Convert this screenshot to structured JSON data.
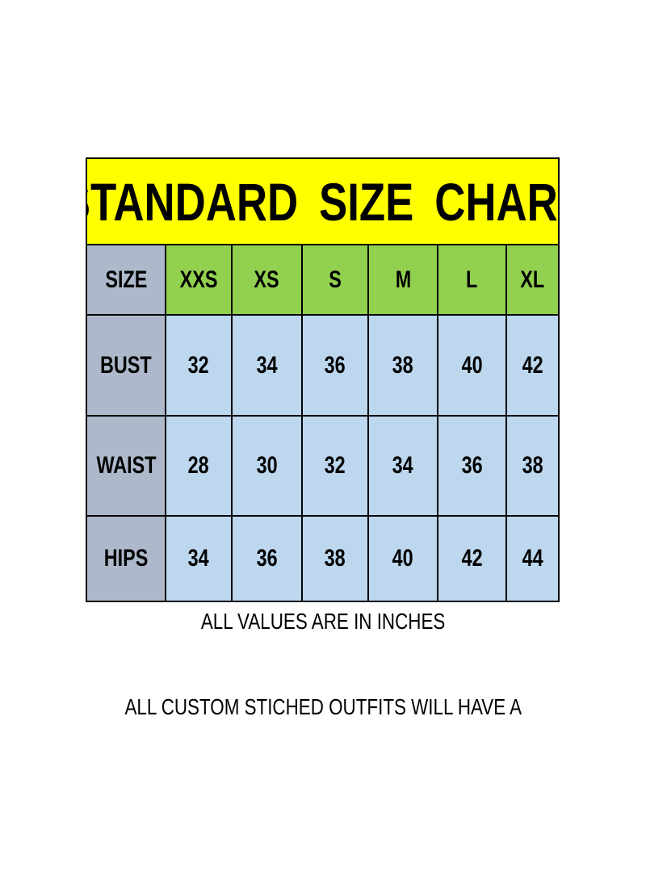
{
  "title": "STANDARD  SIZE  CHART",
  "colors": {
    "title_bg": "#ffff00",
    "size_header_bg": "#92d050",
    "row_label_bg": "#adb9ca",
    "value_bg": "#bdd7ee"
  },
  "table": {
    "corner": "SIZE",
    "columns": [
      "XXS",
      "XS",
      "S",
      "M",
      "L",
      "XL"
    ],
    "rows": [
      {
        "label": "BUST",
        "values": [
          "32",
          "34",
          "36",
          "38",
          "40",
          "42"
        ]
      },
      {
        "label": "WAIST",
        "values": [
          "28",
          "30",
          "32",
          "34",
          "36",
          "38"
        ]
      },
      {
        "label": "HIPS",
        "values": [
          "34",
          "36",
          "38",
          "40",
          "42",
          "44"
        ]
      }
    ]
  },
  "notes": {
    "units": "ALL VALUES ARE IN INCHES",
    "custom": "ALL CUSTOM STICHED OUTFITS WILL HAVE A"
  }
}
